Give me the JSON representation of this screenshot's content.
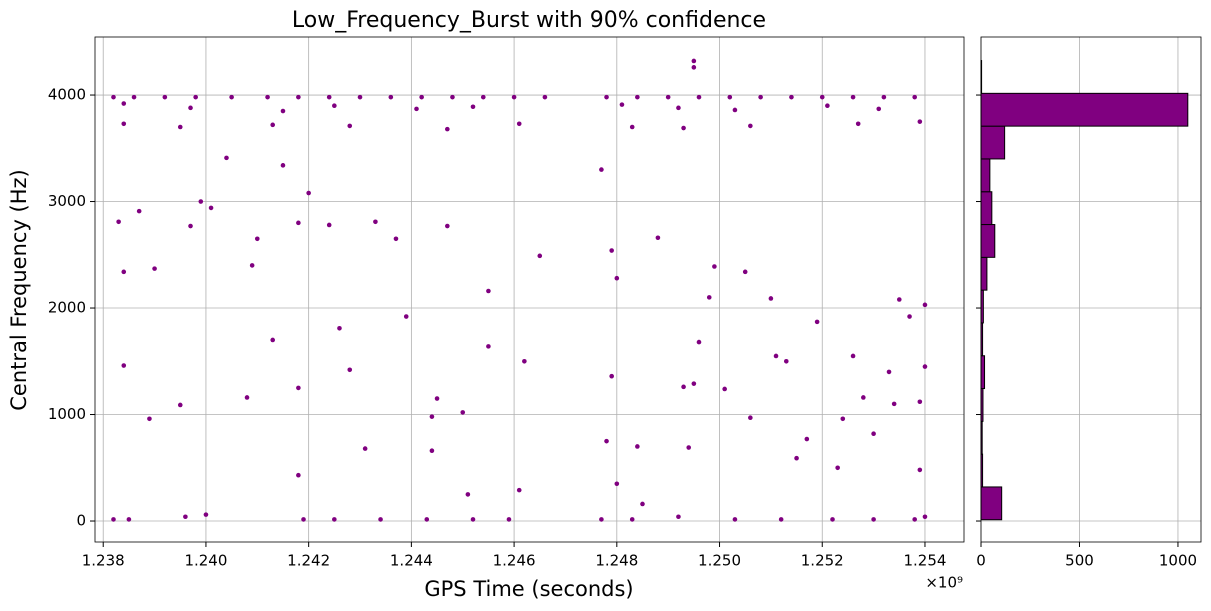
{
  "chart_data": [
    {
      "type": "scatter",
      "title": "Low_Frequency_Burst with 90% confidence",
      "x_label": "GPS Time (seconds)",
      "y_label": "Central Frequency (Hz)",
      "x_multiplier_label": "×10⁹",
      "color": "#800080",
      "grid": true,
      "xlim": [
        1.23784,
        1.25476
      ],
      "ylim": [
        -197,
        4545
      ],
      "xticks": [
        {
          "value": 1.238,
          "label": "1.238"
        },
        {
          "value": 1.24,
          "label": "1.240"
        },
        {
          "value": 1.242,
          "label": "1.242"
        },
        {
          "value": 1.244,
          "label": "1.244"
        },
        {
          "value": 1.246,
          "label": "1.246"
        },
        {
          "value": 1.248,
          "label": "1.248"
        },
        {
          "value": 1.25,
          "label": "1.250"
        },
        {
          "value": 1.252,
          "label": "1.252"
        },
        {
          "value": 1.254,
          "label": "1.254"
        }
      ],
      "yticks": [
        0,
        1000,
        2000,
        3000,
        4000
      ],
      "x": [
        1.2382,
        1.2386,
        1.2392,
        1.2398,
        1.2405,
        1.2412,
        1.2418,
        1.2424,
        1.243,
        1.2436,
        1.2442,
        1.2448,
        1.2454,
        1.246,
        1.2466,
        1.2478,
        1.2484,
        1.249,
        1.2496,
        1.2502,
        1.2508,
        1.2514,
        1.252,
        1.2526,
        1.2532,
        1.2538,
        1.2384,
        1.2397,
        1.2415,
        1.2425,
        1.2441,
        1.2452,
        1.2481,
        1.2492,
        1.2503,
        1.2521,
        1.2531,
        1.2384,
        1.2395,
        1.2413,
        1.2428,
        1.2447,
        1.2461,
        1.2483,
        1.2493,
        1.2506,
        1.2527,
        1.2539,
        1.2383,
        1.2384,
        1.2384,
        1.2387,
        1.2389,
        1.239,
        1.2395,
        1.2397,
        1.2399,
        1.2401,
        1.2404,
        1.2408,
        1.2409,
        1.241,
        1.2413,
        1.2415,
        1.2418,
        1.2418,
        1.2418,
        1.242,
        1.2424,
        1.2426,
        1.2428,
        1.2431,
        1.2433,
        1.2437,
        1.2439,
        1.2444,
        1.2444,
        1.2445,
        1.2447,
        1.245,
        1.2451,
        1.2455,
        1.2455,
        1.2461,
        1.2462,
        1.2465,
        1.2477,
        1.2479,
        1.2479,
        1.248,
        1.248,
        1.2484,
        1.2485,
        1.2488,
        1.2493,
        1.2494,
        1.2495,
        1.2496,
        1.2498,
        1.2499,
        1.2501,
        1.2505,
        1.2506,
        1.251,
        1.2511,
        1.2513,
        1.2515,
        1.2517,
        1.2519,
        1.2523,
        1.2524,
        1.2526,
        1.2528,
        1.253,
        1.2533,
        1.2534,
        1.2535,
        1.2537,
        1.2539,
        1.254,
        1.254,
        1.2539,
        1.2495,
        1.2495,
        1.2478,
        1.2382,
        1.2385,
        1.2396,
        1.24,
        1.2419,
        1.2425,
        1.2434,
        1.2443,
        1.2452,
        1.2459,
        1.2477,
        1.2483,
        1.2492,
        1.2503,
        1.2512,
        1.2522,
        1.253,
        1.2538,
        1.254
      ],
      "values": [
        3980,
        3980,
        3980,
        3980,
        3980,
        3980,
        3980,
        3980,
        3980,
        3980,
        3980,
        3980,
        3980,
        3980,
        3980,
        3980,
        3980,
        3980,
        3980,
        3980,
        3980,
        3980,
        3980,
        3980,
        3980,
        3980,
        3920,
        3880,
        3850,
        3900,
        3870,
        3890,
        3910,
        3880,
        3860,
        3900,
        3870,
        3730,
        3700,
        3720,
        3710,
        3680,
        3730,
        3700,
        3690,
        3710,
        3730,
        3750,
        2810,
        2340,
        1460,
        2910,
        960,
        2370,
        1090,
        2770,
        3000,
        2940,
        3410,
        1160,
        2400,
        2650,
        1700,
        3340,
        430,
        1250,
        2800,
        3080,
        2780,
        1810,
        1420,
        680,
        2810,
        2650,
        1920,
        980,
        660,
        1150,
        2770,
        1020,
        250,
        1640,
        2160,
        290,
        1500,
        2490,
        3300,
        1360,
        2540,
        350,
        2280,
        700,
        160,
        2660,
        1260,
        690,
        1290,
        1680,
        2100,
        2390,
        1240,
        2340,
        970,
        2090,
        1550,
        1500,
        590,
        770,
        1870,
        500,
        960,
        1550,
        1160,
        820,
        1400,
        1100,
        2080,
        1920,
        480,
        1450,
        2030,
        1120,
        4320,
        4260,
        750,
        15,
        15,
        40,
        60,
        15,
        15,
        15,
        15,
        15,
        15,
        15,
        15,
        40,
        15,
        15,
        15,
        15,
        15,
        40
      ]
    },
    {
      "type": "histogram",
      "orientation": "horizontal",
      "color": "#800080",
      "edgecolor": "#000000",
      "grid": true,
      "xlim": [
        0,
        1117
      ],
      "xticks": [
        0,
        500,
        1000
      ],
      "bins": [
        12,
        320,
        628,
        936,
        1244,
        1552,
        1860,
        2168,
        2476,
        2784,
        3092,
        3400,
        3708,
        4016,
        4324
      ],
      "values": [
        105,
        8,
        6,
        10,
        18,
        8,
        12,
        30,
        70,
        55,
        45,
        120,
        1050,
        3
      ]
    }
  ]
}
